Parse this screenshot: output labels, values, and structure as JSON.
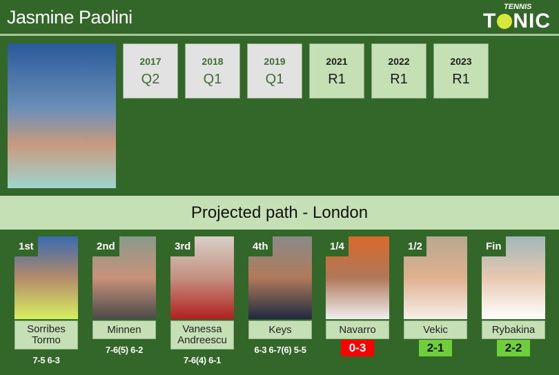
{
  "header": {
    "title": "Jasmine Paolini",
    "logo_top": "TENNIS",
    "logo_main": "TONIC"
  },
  "history": [
    {
      "year": "2017",
      "result": "Q2",
      "style": "grey"
    },
    {
      "year": "2018",
      "result": "Q1",
      "style": "grey"
    },
    {
      "year": "2019",
      "result": "Q1",
      "style": "grey"
    },
    {
      "year": "2021",
      "result": "R1",
      "style": "green"
    },
    {
      "year": "2022",
      "result": "R1",
      "style": "green"
    },
    {
      "year": "2023",
      "result": "R1",
      "style": "green"
    }
  ],
  "banner": "Projected path - London",
  "path": [
    {
      "round": "1st",
      "name": "Sorribes Tormo",
      "score": "7-5 6-3"
    },
    {
      "round": "2nd",
      "name": "Minnen",
      "score": "7-6(5) 6-2"
    },
    {
      "round": "3rd",
      "name": "Vanessa Andreescu",
      "score": "7-6(4) 6-1"
    },
    {
      "round": "4th",
      "name": "Keys",
      "score": "6-3 6-7(6) 5-5"
    },
    {
      "round": "1/4",
      "name": "Navarro",
      "h2h": "0-3",
      "h2h_color": "#ff0000"
    },
    {
      "round": "1/2",
      "name": "Vekic",
      "h2h": "2-1",
      "h2h_color": "#6fcf3a"
    },
    {
      "round": "Fin",
      "name": "Rybakina",
      "h2h": "2-2",
      "h2h_color": "#6fcf3a"
    }
  ]
}
